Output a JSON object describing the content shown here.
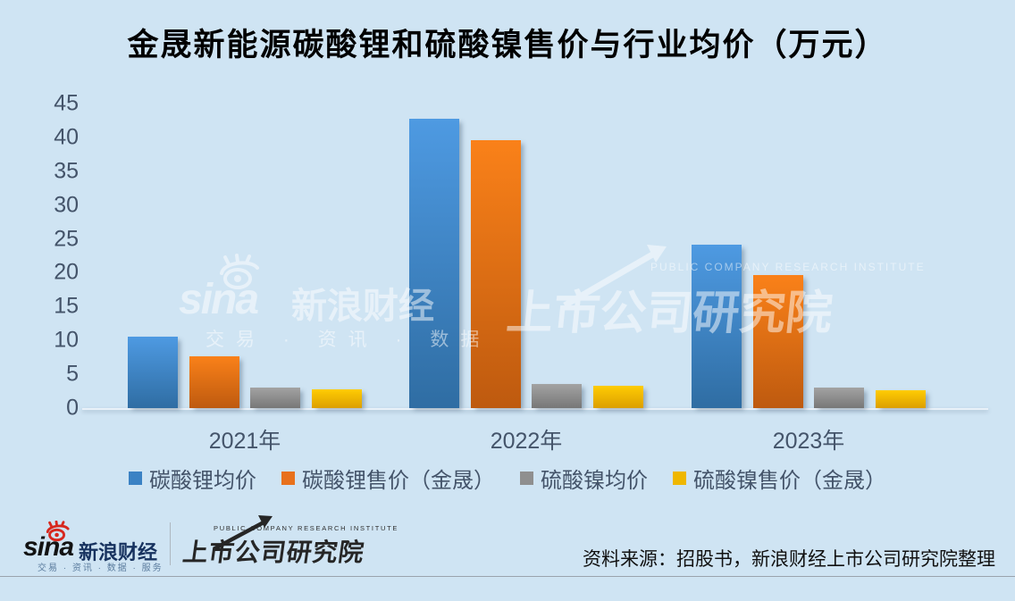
{
  "chart_data": {
    "type": "bar",
    "title": "金晟新能源碳酸锂和硫酸镍售价与行业均价（万元）",
    "unit": "万元",
    "categories": [
      "2021年",
      "2022年",
      "2023年"
    ],
    "series": [
      {
        "name": "碳酸锂均价",
        "values": [
          10.6,
          42.7,
          24.1
        ],
        "color": "#3B82C4",
        "gradient_top": "#4E9AE2",
        "gradient_bottom": "#2F6DA3"
      },
      {
        "name": "碳酸锂售价（金晟）",
        "values": [
          7.7,
          39.6,
          19.6
        ],
        "color": "#E8711C",
        "gradient_top": "#FA8119",
        "gradient_bottom": "#BE5A0F"
      },
      {
        "name": "硫酸镍均价",
        "values": [
          3.1,
          3.5,
          3.0
        ],
        "color": "#8F8F8F",
        "gradient_top": "#A3A3A3",
        "gradient_bottom": "#777777"
      },
      {
        "name": "硫酸镍售价（金晟）",
        "values": [
          2.8,
          3.3,
          2.7
        ],
        "color": "#EFB700",
        "gradient_top": "#FFCC03",
        "gradient_bottom": "#DC9F00"
      }
    ],
    "xlabel": "",
    "ylabel": "",
    "ylim": [
      0,
      45
    ],
    "ytick_step": 5,
    "grid": false,
    "legend_position": "bottom"
  },
  "watermarks": {
    "sina": {
      "brand": "sina",
      "name": "新浪财经",
      "tagline": "交易 · 资讯 · 数据"
    },
    "institute": {
      "caption": "PUBLIC COMPANY RESEARCH INSTITUTE",
      "name": "上市公司研究院"
    }
  },
  "footer": {
    "sina": {
      "brand": "sina",
      "name": "新浪财经",
      "tagline": "交易 · 资讯 · 数据 · 服务"
    },
    "institute": {
      "caption": "PUBLIC COMPANY RESEARCH INSTITUTE",
      "name": "上市公司研究院"
    },
    "source": "资料来源：招股书，新浪财经上市公司研究院整理"
  },
  "colors": {
    "background": "#CFE4F3",
    "axis_text": "#44546A",
    "title_text": "#000000"
  }
}
